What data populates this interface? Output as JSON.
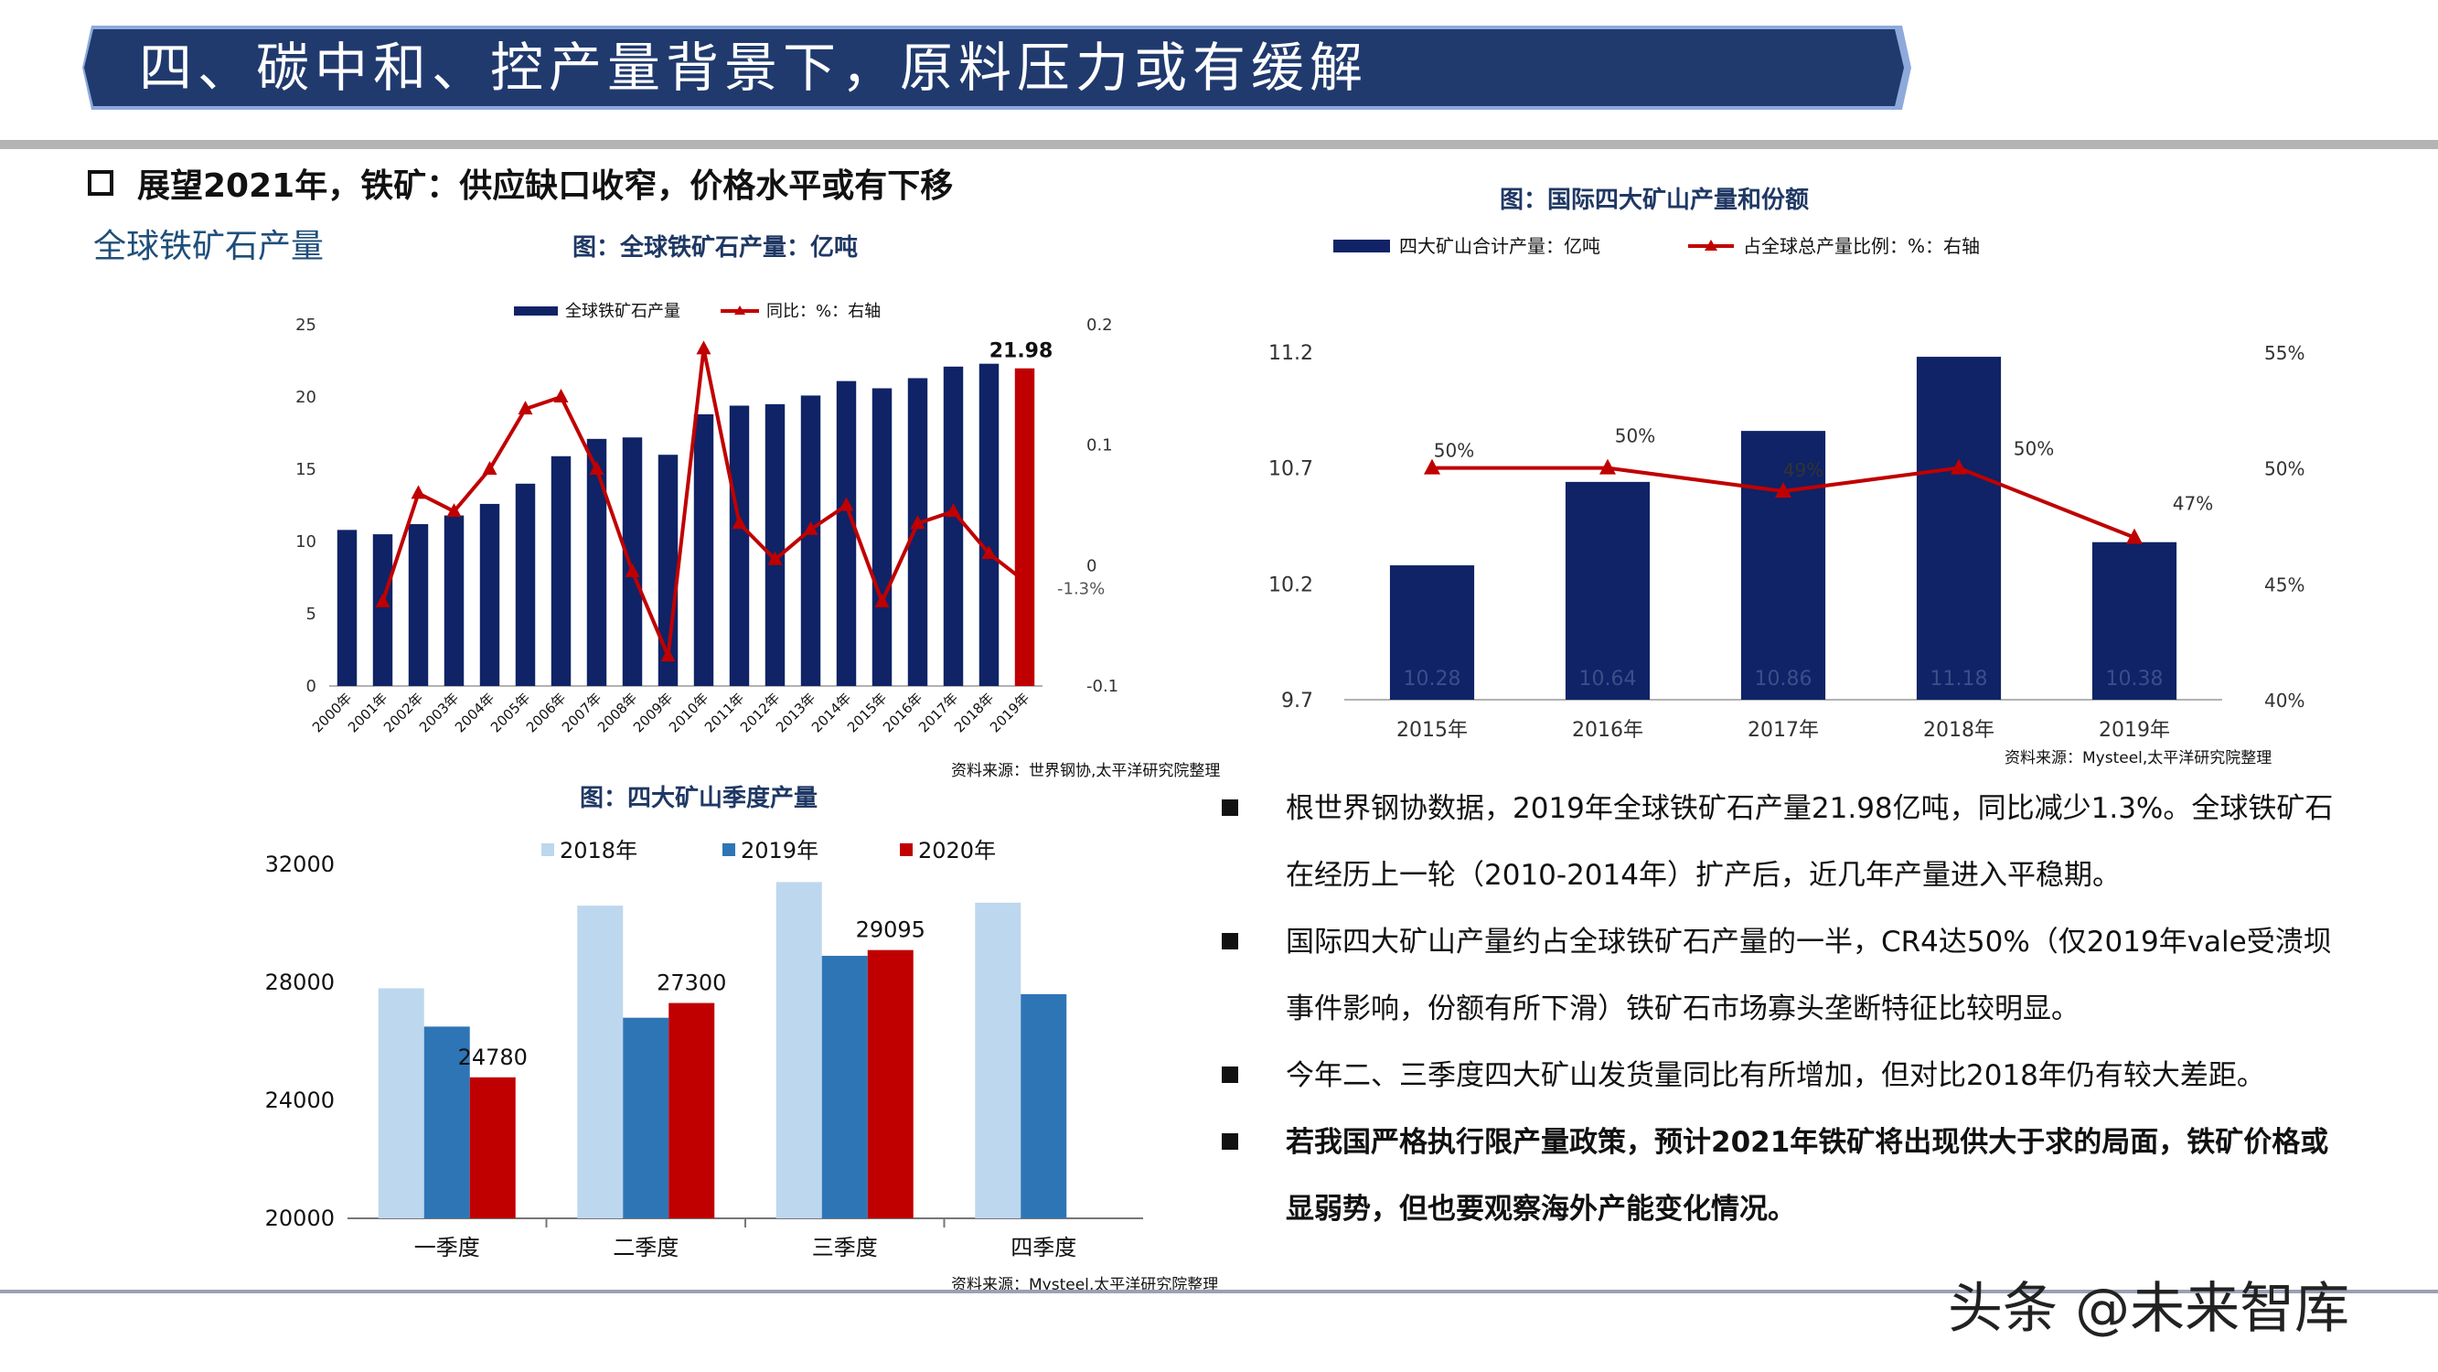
{
  "banner": {
    "title": "四、碳中和、控产量背景下，原料压力或有缓解"
  },
  "heading": "展望2021年，铁矿：供应缺口收窄，价格水平或有下移",
  "left_section_title": "全球铁矿石产量",
  "colors": {
    "navy": "#0f2366",
    "red": "#c00000",
    "light_blue": "#bdd7ee",
    "mid_blue": "#2e75b6",
    "banner": "#203a6e",
    "banner_edge": "#8eaadb"
  },
  "chart1": {
    "caption": "图：全球铁矿石产量：亿吨",
    "source": "资料来源：世界钢协,太平洋研究院整理",
    "legend": [
      "全球铁矿石产量",
      "同比：%：右轴"
    ],
    "last_bar_label": "21.98",
    "yleft_ticks": [
      "25",
      "20",
      "15",
      "10",
      "5",
      "0"
    ],
    "yright_ticks": [
      "0.2",
      "0.1",
      "0",
      "-0.1"
    ],
    "yoy_last_label": "-1.3%"
  },
  "chart2": {
    "caption": "图：国际四大矿山产量和份额",
    "source": "资料来源：Mysteel,太平洋研究院整理",
    "legend": [
      "四大矿山合计产量：亿吨",
      "占全球总产量比例：%：右轴"
    ],
    "yleft_ticks": [
      "11.2",
      "10.7",
      "10.2",
      "9.7"
    ],
    "yright_ticks": [
      "55%",
      "50%",
      "45%",
      "40%"
    ],
    "bar_labels": [
      "10.28",
      "10.64",
      "10.86",
      "11.18",
      "10.38"
    ],
    "share_labels": [
      "50%",
      "50%",
      "49%",
      "50%",
      "47%"
    ]
  },
  "chart3": {
    "caption": "图：四大矿山季度产量",
    "source": "资料来源：Mysteel,太平洋研究院整理",
    "legend": [
      "2018年",
      "2019年",
      "2020年"
    ],
    "y_ticks": [
      "32000",
      "28000",
      "24000",
      "20000"
    ],
    "value_labels": [
      "24780",
      "27300",
      "29095"
    ]
  },
  "chart_data": [
    {
      "type": "bar",
      "title": "图：全球铁矿石产量：亿吨",
      "categories": [
        "2000年",
        "2001年",
        "2002年",
        "2003年",
        "2004年",
        "2005年",
        "2006年",
        "2007年",
        "2008年",
        "2009年",
        "2010年",
        "2011年",
        "2012年",
        "2013年",
        "2014年",
        "2015年",
        "2016年",
        "2017年",
        "2018年",
        "2019年"
      ],
      "series": [
        {
          "name": "全球铁矿石产量",
          "type": "bar",
          "axis": "left",
          "values": [
            10.8,
            10.5,
            11.2,
            11.8,
            12.6,
            14.0,
            15.9,
            17.1,
            17.2,
            16.0,
            18.8,
            19.4,
            19.5,
            20.1,
            21.1,
            20.6,
            21.3,
            22.1,
            22.3,
            21.98
          ]
        },
        {
          "name": "同比：%：右轴",
          "type": "line",
          "axis": "right",
          "values": [
            null,
            -0.03,
            0.06,
            0.045,
            0.08,
            0.13,
            0.14,
            0.08,
            -0.005,
            -0.075,
            0.18,
            0.035,
            0.005,
            0.03,
            0.05,
            -0.03,
            0.035,
            0.045,
            0.01,
            -0.013
          ]
        }
      ],
      "ylim": [
        0,
        25
      ],
      "ylim_right": [
        -0.1,
        0.2
      ],
      "legend": "top"
    },
    {
      "type": "bar",
      "title": "图：国际四大矿山产量和份额",
      "categories": [
        "2015年",
        "2016年",
        "2017年",
        "2018年",
        "2019年"
      ],
      "series": [
        {
          "name": "四大矿山合计产量：亿吨",
          "type": "bar",
          "axis": "left",
          "values": [
            10.28,
            10.64,
            10.86,
            11.18,
            10.38
          ]
        },
        {
          "name": "占全球总产量比例：%：右轴",
          "type": "line",
          "axis": "right",
          "values": [
            50,
            50,
            49,
            50,
            47
          ]
        }
      ],
      "ylim": [
        9.7,
        11.2
      ],
      "ylim_right": [
        40,
        55
      ],
      "legend": "top"
    },
    {
      "type": "bar",
      "title": "图：四大矿山季度产量",
      "categories": [
        "一季度",
        "二季度",
        "三季度",
        "四季度"
      ],
      "series": [
        {
          "name": "2018年",
          "values": [
            27800,
            30600,
            31400,
            30700
          ]
        },
        {
          "name": "2019年",
          "values": [
            26500,
            26800,
            28900,
            27600
          ]
        },
        {
          "name": "2020年",
          "values": [
            24780,
            27300,
            29095,
            null
          ]
        }
      ],
      "ylim": [
        20000,
        32000
      ],
      "legend": "top"
    }
  ],
  "bullets": [
    {
      "text": "根世界钢协数据，2019年全球铁矿石产量21.98亿吨，同比减少1.3%。全球铁矿石在经历上一轮（2010-2014年）扩产后，近几年产量进入平稳期。",
      "bold": false
    },
    {
      "text": "国际四大矿山产量约占全球铁矿石产量的一半，CR4达50%（仅2019年vale受溃坝事件影响，份额有所下滑）铁矿石市场寡头垄断特征比较明显。",
      "bold": false
    },
    {
      "text": "今年二、三季度四大矿山发货量同比有所增加，但对比2018年仍有较大差距。",
      "bold": false
    },
    {
      "text": "若我国严格执行限产量政策，预计2021年铁矿将出现供大于求的局面，铁矿价格或显弱势，但也要观察海外产能变化情况。",
      "bold": true
    }
  ],
  "watermark": {
    "text": "头条 @未来智库"
  }
}
